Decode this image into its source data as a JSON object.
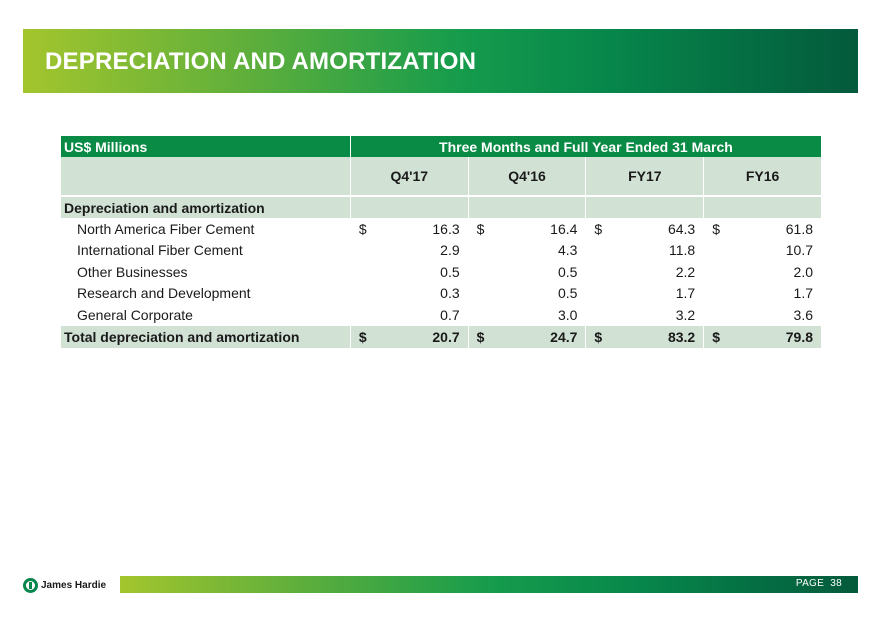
{
  "title": "DEPRECIATION AND AMORTIZATION",
  "colors": {
    "brand_dark": "#035a3c",
    "brand_green": "#0a8b45",
    "brand_lime": "#a3c52d",
    "row_fill": "#d1e1d4"
  },
  "table": {
    "unit_label": "US$ Millions",
    "period_header": "Three Months and Full Year Ended 31 March",
    "columns": [
      "Q4'17",
      "Q4'16",
      "FY17",
      "FY16"
    ],
    "section_label": "Depreciation and amortization",
    "currency_symbol": "$",
    "rows": [
      {
        "label": "North America Fiber Cement",
        "values": [
          "16.3",
          "16.4",
          "64.3",
          "61.8"
        ],
        "show_currency": true
      },
      {
        "label": "International Fiber Cement",
        "values": [
          "2.9",
          "4.3",
          "11.8",
          "10.7"
        ]
      },
      {
        "label": "Other Businesses",
        "values": [
          "0.5",
          "0.5",
          "2.2",
          "2.0"
        ]
      },
      {
        "label": "Research and Development",
        "values": [
          "0.3",
          "0.5",
          "1.7",
          "1.7"
        ]
      },
      {
        "label": "General Corporate",
        "values": [
          "0.7",
          "3.0",
          "3.2",
          "3.6"
        ]
      }
    ],
    "total": {
      "label": "Total depreciation and amortization",
      "values": [
        "20.7",
        "24.7",
        "83.2",
        "79.8"
      ]
    }
  },
  "footer": {
    "company": "James Hardie",
    "page_label": "PAGE",
    "page_number": "38"
  }
}
